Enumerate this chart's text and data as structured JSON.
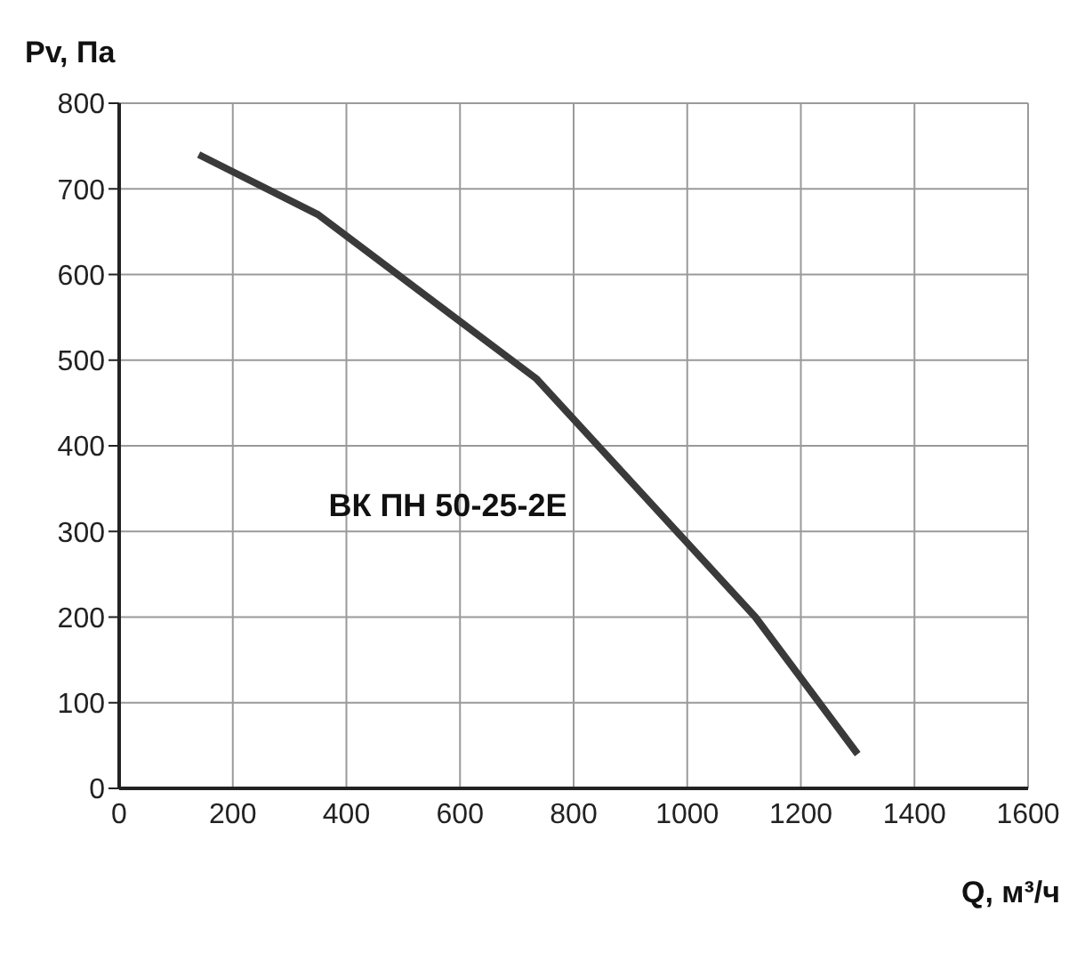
{
  "chart_data": {
    "type": "line",
    "xlabel": "Q, м³/ч",
    "ylabel": "Pv, Па",
    "xlim": [
      0,
      1600
    ],
    "xticks": [
      0,
      200,
      400,
      600,
      800,
      1000,
      1200,
      1400,
      1600
    ],
    "ylim": [
      0,
      800
    ],
    "yticks": [
      0,
      100,
      200,
      300,
      400,
      500,
      600,
      700,
      800
    ],
    "grid": true,
    "marker": "none",
    "line_style": "solid",
    "series": [
      {
        "name": "ВК ПН 50-25-2Е",
        "color": "#3a3a3a",
        "x": [
          140,
          350,
          735,
          1120,
          1300
        ],
        "values": [
          740,
          670,
          478,
          200,
          40
        ]
      }
    ]
  }
}
